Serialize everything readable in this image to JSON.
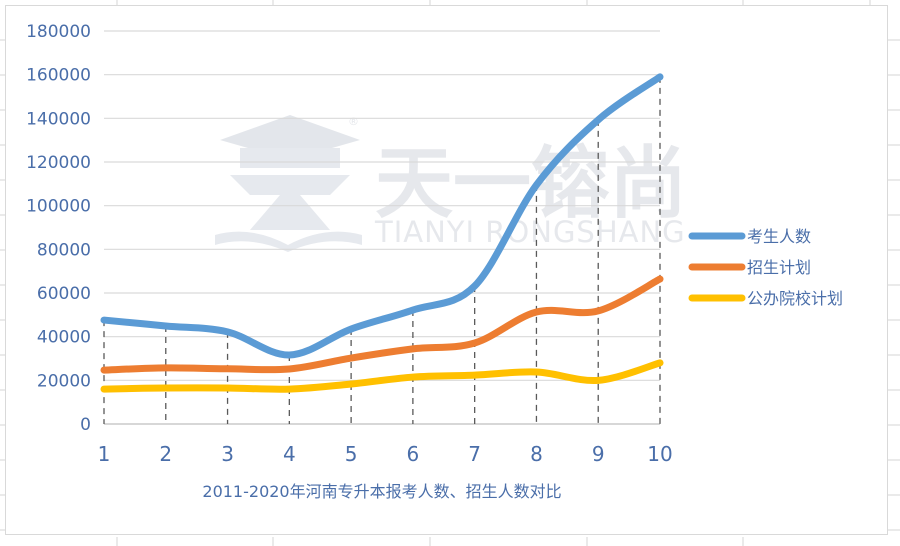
{
  "chart_data": {
    "type": "line",
    "title": "2011-2020年河南专升本报考人数、招生人数对比",
    "xlabel": "",
    "ylabel": "",
    "categories": [
      "1",
      "2",
      "3",
      "4",
      "5",
      "6",
      "7",
      "8",
      "9",
      "10"
    ],
    "ylim": [
      0,
      180000
    ],
    "yticks": [
      0,
      20000,
      40000,
      60000,
      80000,
      100000,
      120000,
      140000,
      160000,
      180000
    ],
    "grid": true,
    "drop_lines": true,
    "smooth": true,
    "legend_position": "right",
    "series": [
      {
        "name": "考生人数",
        "color": "#5b9bd5",
        "values": [
          47600,
          44900,
          42200,
          31600,
          43500,
          52200,
          63200,
          109500,
          139300,
          159000
        ]
      },
      {
        "name": "招生计划",
        "color": "#ed7d31",
        "values": [
          24700,
          25700,
          25300,
          25200,
          30200,
          34400,
          37100,
          51300,
          51800,
          66400
        ]
      },
      {
        "name": "公办院校计划",
        "color": "#ffc000",
        "values": [
          16000,
          16500,
          16500,
          16000,
          18300,
          21500,
          22400,
          23800,
          20000,
          28000
        ]
      }
    ]
  },
  "watermark": {
    "cn": "天一镕尚",
    "en": "TIANYI RONGSHANG",
    "registered": "®"
  }
}
